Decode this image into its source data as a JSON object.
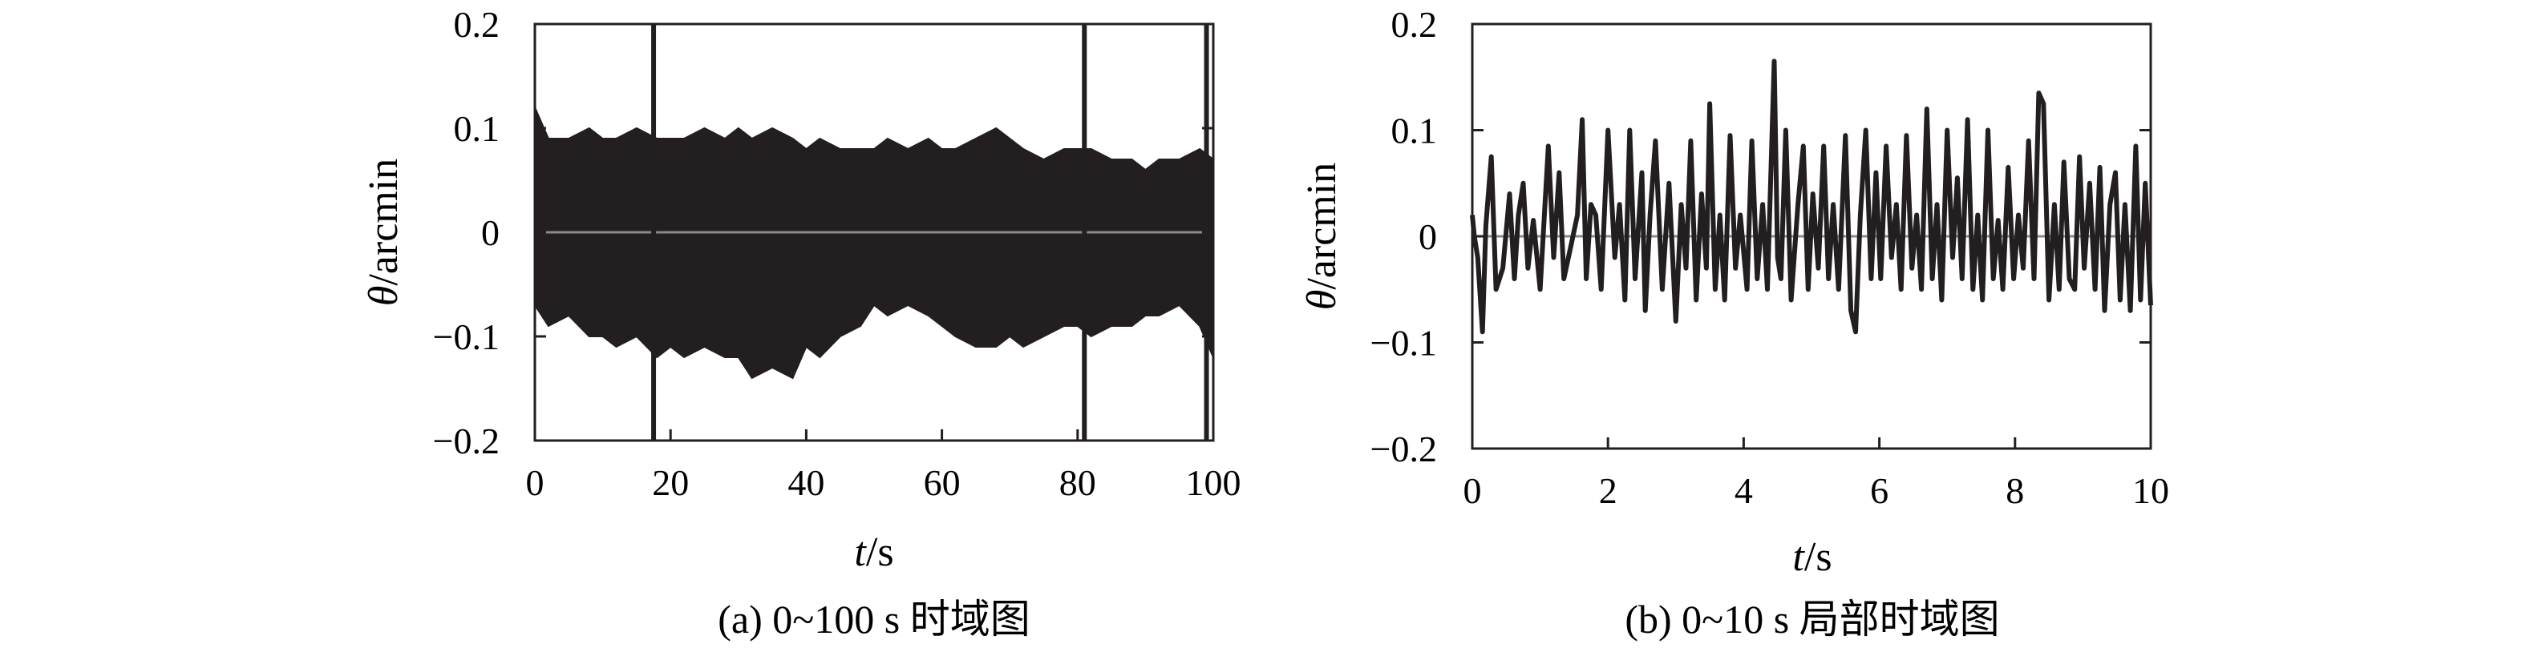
{
  "chart_data": [
    {
      "type": "line",
      "caption": "(a) 0~100 s 时域图",
      "xlabel": {
        "var": "t",
        "unit": "/s"
      },
      "ylabel": {
        "var": "θ",
        "unit": "/arcmin"
      },
      "xlim": [
        0,
        100
      ],
      "ylim": [
        -0.2,
        0.2
      ],
      "xticks": [
        "0",
        "20",
        "40",
        "60",
        "80",
        "100"
      ],
      "yticks": [
        "0.2",
        "0.1",
        "0",
        "−0.1",
        "−0.2"
      ],
      "zero_line": true,
      "series": [
        {
          "envelope": {
            "x": [
              0,
              2,
              5,
              8,
              10,
              12,
              15,
              18,
              20,
              22,
              25,
              28,
              30,
              32,
              35,
              38,
              40,
              42,
              45,
              48,
              50,
              52,
              55,
              58,
              60,
              62,
              65,
              68,
              70,
              72,
              75,
              78,
              80,
              82,
              85,
              88,
              90,
              92,
              95,
              98,
              100
            ],
            "upper": [
              0.12,
              0.09,
              0.09,
              0.1,
              0.09,
              0.09,
              0.1,
              0.09,
              0.09,
              0.09,
              0.1,
              0.09,
              0.1,
              0.09,
              0.1,
              0.09,
              0.08,
              0.09,
              0.08,
              0.08,
              0.08,
              0.09,
              0.08,
              0.09,
              0.08,
              0.08,
              0.09,
              0.1,
              0.09,
              0.08,
              0.07,
              0.08,
              0.08,
              0.08,
              0.07,
              0.07,
              0.06,
              0.07,
              0.07,
              0.08,
              0.07
            ],
            "lower": [
              -0.07,
              -0.09,
              -0.08,
              -0.1,
              -0.1,
              -0.11,
              -0.1,
              -0.12,
              -0.11,
              -0.12,
              -0.11,
              -0.12,
              -0.12,
              -0.14,
              -0.13,
              -0.14,
              -0.11,
              -0.12,
              -0.1,
              -0.09,
              -0.07,
              -0.08,
              -0.07,
              -0.08,
              -0.09,
              -0.1,
              -0.11,
              -0.11,
              -0.1,
              -0.11,
              -0.1,
              -0.09,
              -0.09,
              -0.1,
              -0.09,
              -0.09,
              -0.08,
              -0.08,
              -0.07,
              -0.09,
              -0.12
            ]
          },
          "spikes": [
            {
              "x": 17.5,
              "y": 0.2
            },
            {
              "x": 17.5,
              "y": -0.2
            },
            {
              "x": 81.0,
              "y": 0.2
            },
            {
              "x": 81.0,
              "y": -0.2
            },
            {
              "x": 99.0,
              "y": 0.2
            },
            {
              "x": 99.0,
              "y": -0.2
            }
          ]
        }
      ]
    },
    {
      "type": "line",
      "caption": "(b) 0~10 s 局部时域图",
      "xlabel": {
        "var": "t",
        "unit": "/s"
      },
      "ylabel": {
        "var": "θ",
        "unit": "/arcmin"
      },
      "xlim": [
        0,
        10
      ],
      "ylim": [
        -0.2,
        0.2
      ],
      "xticks": [
        "0",
        "2",
        "4",
        "6",
        "8",
        "10"
      ],
      "yticks": [
        "0.2",
        "0.1",
        "0",
        "−0.1",
        "−0.2"
      ],
      "zero_line": true,
      "series": [
        {
          "x": [
            0,
            0.03,
            0.08,
            0.15,
            0.2,
            0.28,
            0.35,
            0.45,
            0.55,
            0.62,
            0.68,
            0.75,
            0.82,
            0.9,
            1.0,
            1.12,
            1.2,
            1.28,
            1.35,
            1.45,
            1.55,
            1.62,
            1.68,
            1.75,
            1.82,
            1.9,
            2.0,
            2.1,
            2.17,
            2.25,
            2.32,
            2.4,
            2.5,
            2.55,
            2.62,
            2.7,
            2.8,
            2.9,
            3.0,
            3.08,
            3.15,
            3.22,
            3.3,
            3.38,
            3.45,
            3.5,
            3.58,
            3.65,
            3.72,
            3.8,
            3.88,
            3.95,
            4.05,
            4.12,
            4.2,
            4.28,
            4.35,
            4.45,
            4.5,
            4.55,
            4.62,
            4.7,
            4.8,
            4.88,
            4.95,
            5.02,
            5.1,
            5.18,
            5.25,
            5.32,
            5.4,
            5.5,
            5.58,
            5.65,
            5.72,
            5.8,
            5.88,
            5.95,
            6.02,
            6.1,
            6.18,
            6.25,
            6.32,
            6.4,
            6.48,
            6.55,
            6.62,
            6.7,
            6.78,
            6.85,
            6.92,
            7.0,
            7.08,
            7.15,
            7.22,
            7.3,
            7.38,
            7.45,
            7.52,
            7.6,
            7.68,
            7.75,
            7.82,
            7.9,
            7.98,
            8.05,
            8.12,
            8.2,
            8.28,
            8.35,
            8.42,
            8.5,
            8.58,
            8.65,
            8.72,
            8.8,
            8.88,
            8.95,
            9.02,
            9.1,
            9.18,
            9.25,
            9.32,
            9.4,
            9.48,
            9.55,
            9.62,
            9.7,
            9.78,
            9.85,
            9.92,
            10.0
          ],
          "y": [
            0.02,
            0.0,
            -0.02,
            -0.09,
            0.01,
            0.075,
            -0.05,
            -0.03,
            0.04,
            -0.04,
            0.02,
            0.05,
            -0.03,
            0.015,
            -0.05,
            0.085,
            -0.02,
            0.06,
            -0.04,
            -0.01,
            0.02,
            0.11,
            -0.04,
            0.03,
            0.02,
            -0.05,
            0.1,
            -0.02,
            0.03,
            -0.06,
            0.1,
            -0.04,
            0.06,
            -0.07,
            0.02,
            0.09,
            -0.05,
            0.05,
            -0.08,
            0.03,
            -0.03,
            0.09,
            -0.06,
            0.04,
            -0.03,
            0.125,
            -0.05,
            0.02,
            -0.06,
            0.095,
            -0.03,
            0.02,
            -0.05,
            0.09,
            -0.04,
            0.03,
            -0.05,
            0.165,
            -0.02,
            -0.04,
            0.1,
            -0.06,
            0.03,
            0.085,
            -0.05,
            0.04,
            -0.03,
            0.085,
            -0.04,
            0.03,
            -0.05,
            0.095,
            -0.07,
            -0.09,
            0.02,
            0.1,
            -0.04,
            0.06,
            -0.04,
            0.085,
            -0.02,
            0.03,
            -0.05,
            0.095,
            -0.03,
            0.02,
            -0.05,
            0.12,
            -0.04,
            0.03,
            -0.06,
            0.1,
            -0.02,
            0.055,
            -0.04,
            0.11,
            -0.05,
            0.02,
            -0.06,
            0.1,
            -0.04,
            0.015,
            -0.05,
            0.065,
            -0.04,
            0.02,
            -0.03,
            0.09,
            -0.04,
            0.135,
            0.125,
            -0.06,
            0.03,
            -0.05,
            0.07,
            -0.04,
            -0.05,
            0.075,
            -0.03,
            0.05,
            -0.05,
            0.065,
            -0.07,
            0.03,
            0.06,
            -0.06,
            0.03,
            -0.07,
            0.085,
            -0.06,
            0.05,
            -0.065
          ]
        }
      ]
    }
  ]
}
